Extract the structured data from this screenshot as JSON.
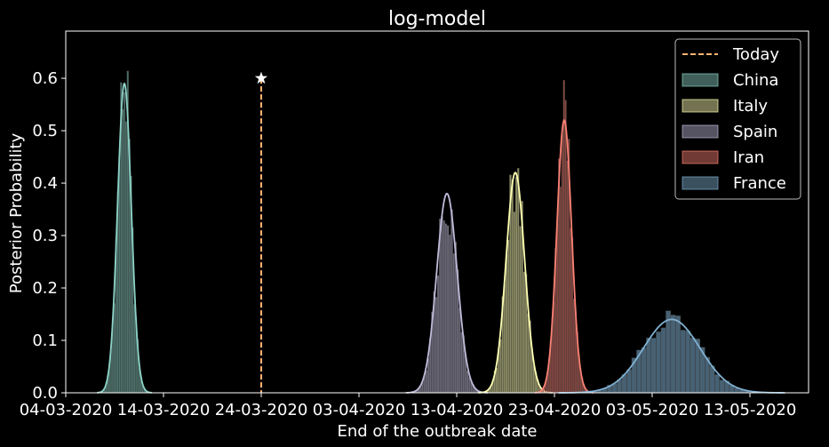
{
  "chart_data": {
    "type": "histogram",
    "title": "log-model",
    "xlabel": "End of the outbreak date",
    "ylabel": "Posterior Probability",
    "x_tick_labels": [
      "04-03-2020",
      "14-03-2020",
      "24-03-2020",
      "03-04-2020",
      "13-04-2020",
      "23-04-2020",
      "03-05-2020",
      "13-05-2020"
    ],
    "x_tick_dates": [
      "2020-03-04",
      "2020-03-14",
      "2020-03-24",
      "2020-04-03",
      "2020-04-13",
      "2020-04-23",
      "2020-05-03",
      "2020-05-13"
    ],
    "xlim": [
      "2020-03-04",
      "2020-05-19"
    ],
    "ylim": [
      0,
      0.69
    ],
    "y_ticks": [
      0.0,
      0.1,
      0.2,
      0.3,
      0.4,
      0.5,
      0.6
    ],
    "y_tick_labels": [
      "0.0",
      "0.1",
      "0.2",
      "0.3",
      "0.4",
      "0.5",
      "0.6"
    ],
    "grid": false,
    "legend_position": "top-right",
    "today": {
      "label": "Today",
      "date": "2020-03-24",
      "value": 0.6,
      "color": "#ffb574",
      "marker": "star"
    },
    "series": [
      {
        "name": "China",
        "peak_date": "2020-03-10",
        "peak_density": 0.59,
        "color": "#8dd3c7"
      },
      {
        "name": "Italy",
        "peak_date": "2020-04-19",
        "peak_density": 0.42,
        "color": "#feffb3"
      },
      {
        "name": "Spain",
        "peak_date": "2020-04-12",
        "peak_density": 0.38,
        "color": "#bfbbd9"
      },
      {
        "name": "Iran",
        "peak_date": "2020-04-24",
        "peak_density": 0.52,
        "color": "#fa8174"
      },
      {
        "name": "France",
        "peak_date": "2020-05-05",
        "peak_density": 0.14,
        "color": "#81b1d2"
      }
    ]
  }
}
